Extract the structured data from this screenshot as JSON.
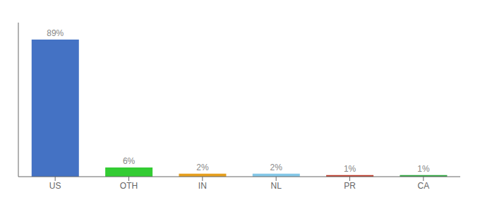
{
  "chart_data": {
    "type": "bar",
    "categories": [
      "US",
      "OTH",
      "IN",
      "NL",
      "PR",
      "CA"
    ],
    "values": [
      89,
      6,
      2,
      2,
      1,
      1
    ],
    "value_labels": [
      "89%",
      "6%",
      "2%",
      "2%",
      "1%",
      "1%"
    ],
    "colors": [
      "#4472c4",
      "#33cc33",
      "#e6a020",
      "#85c8e8",
      "#c04030",
      "#33aa44"
    ],
    "ylim": [
      0,
      100
    ],
    "grid": false,
    "data_labels": true,
    "tick_labels": "x"
  }
}
